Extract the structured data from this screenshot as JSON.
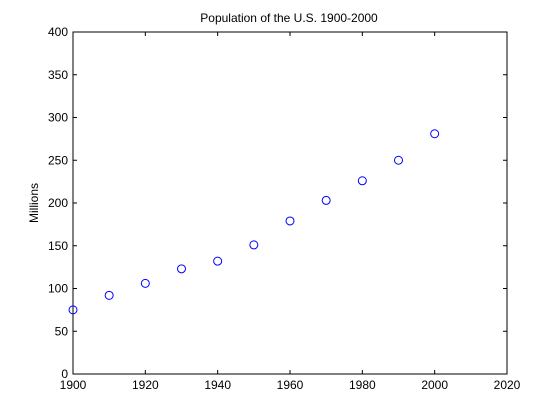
{
  "chart_data": {
    "type": "scatter",
    "title": "Population of the U.S. 1900-2000",
    "xlabel": "",
    "ylabel": "Millions",
    "xlim": [
      1900,
      2020
    ],
    "ylim": [
      0,
      400
    ],
    "x_ticks": [
      1900,
      1920,
      1940,
      1960,
      1980,
      2000,
      2020
    ],
    "y_ticks": [
      0,
      50,
      100,
      150,
      200,
      250,
      300,
      350,
      400
    ],
    "grid": false,
    "marker": "circle-open",
    "marker_color": "#0000ff",
    "x": [
      1900,
      1910,
      1920,
      1930,
      1940,
      1950,
      1960,
      1970,
      1980,
      1990,
      2000
    ],
    "values": [
      75,
      92,
      106,
      123,
      132,
      151,
      179,
      203,
      226,
      250,
      281
    ]
  }
}
